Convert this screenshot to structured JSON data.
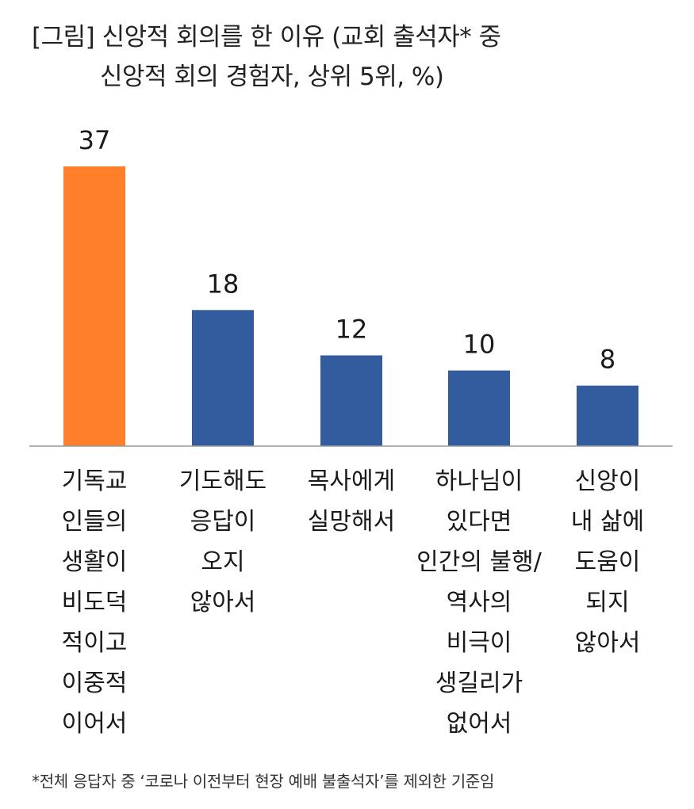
{
  "title": {
    "line1": "[그림] 신앙적 회의를 한 이유 (교회 출석자* 중",
    "line2": "신앙적 회의 경험자, 상위 5위, %)"
  },
  "chart_data": {
    "type": "bar",
    "title": "[그림] 신앙적 회의를 한 이유 (교회 출석자* 중 신앙적 회의 경험자, 상위 5위, %)",
    "xlabel": "",
    "ylabel": "%",
    "ylim": [
      0,
      37
    ],
    "grid": false,
    "legend": "none",
    "categories": [
      [
        "기독교",
        "인들의",
        "생활이",
        "비도덕",
        "적이고",
        "이중적",
        "이어서"
      ],
      [
        "기도해도",
        "응답이",
        "오지",
        "않아서"
      ],
      [
        "목사에게",
        "실망해서"
      ],
      [
        "하나님이",
        "있다면",
        "인간의 불행/",
        "역사의",
        "비극이",
        "생길리가",
        "없어서"
      ],
      [
        "신앙이",
        "내 삶에",
        "도움이",
        "되지",
        "않아서"
      ]
    ],
    "values": [
      37,
      18,
      12,
      10,
      8
    ],
    "colors": [
      "#FF7F2A",
      "#335C9E",
      "#335C9E",
      "#335C9E",
      "#335C9E"
    ]
  },
  "footnote": "*전체 응답자 중 ‘코로나 이전부터 현장 예배 불출석자’를 제외한 기준임"
}
